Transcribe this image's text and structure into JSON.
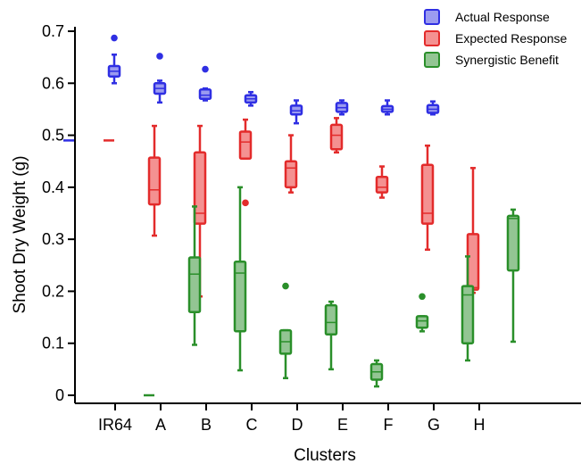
{
  "chart_data": {
    "type": "box",
    "title": "",
    "xlabel": "Clusters",
    "ylabel": "Shoot Dry Weight (g)",
    "ylim": [
      0,
      0.7
    ],
    "yticks": [
      "0",
      "0.1",
      "0.2",
      "0.3",
      "0.4",
      "0.5",
      "0.6",
      "0.7"
    ],
    "categories": [
      "IR64",
      "A",
      "B",
      "C",
      "D",
      "E",
      "F",
      "G",
      "H"
    ],
    "grid": false,
    "legend_position": "top-right",
    "series": [
      {
        "name": "Actual Response",
        "color": "#2f2fe3",
        "fill": "#9b9bf0",
        "boxes": [
          {
            "category": "IR64",
            "single_value": 0.49
          },
          {
            "category": "A",
            "whislo": 0.6,
            "q1": 0.613,
            "med": 0.623,
            "q3": 0.633,
            "whishi": 0.655,
            "fliers": [
              0.687
            ]
          },
          {
            "category": "B",
            "whislo": 0.563,
            "q1": 0.58,
            "med": 0.59,
            "q3": 0.6,
            "whishi": 0.605,
            "fliers": [
              0.652
            ]
          },
          {
            "category": "C",
            "whislo": 0.567,
            "q1": 0.57,
            "med": 0.577,
            "q3": 0.588,
            "whishi": 0.59,
            "fliers": [
              0.627
            ]
          },
          {
            "category": "D",
            "whislo": 0.557,
            "q1": 0.563,
            "med": 0.57,
            "q3": 0.577,
            "whishi": 0.583,
            "fliers": []
          },
          {
            "category": "E",
            "whislo": 0.523,
            "q1": 0.54,
            "med": 0.547,
            "q3": 0.557,
            "whishi": 0.567,
            "fliers": []
          },
          {
            "category": "F",
            "whislo": 0.54,
            "q1": 0.545,
            "med": 0.553,
            "q3": 0.562,
            "whishi": 0.567,
            "fliers": []
          },
          {
            "category": "G",
            "whislo": 0.54,
            "q1": 0.545,
            "med": 0.55,
            "q3": 0.556,
            "whishi": 0.567,
            "fliers": []
          },
          {
            "category": "H",
            "whislo": 0.54,
            "q1": 0.543,
            "med": 0.55,
            "q3": 0.558,
            "whishi": 0.565,
            "fliers": []
          }
        ]
      },
      {
        "name": "Expected Response",
        "color": "#e32b2b",
        "fill": "#f49191",
        "boxes": [
          {
            "category": "IR64",
            "single_value": 0.49
          },
          {
            "category": "A",
            "whislo": 0.307,
            "q1": 0.367,
            "med": 0.395,
            "q3": 0.457,
            "whishi": 0.518,
            "fliers": []
          },
          {
            "category": "B",
            "whislo": 0.19,
            "q1": 0.33,
            "med": 0.35,
            "q3": 0.467,
            "whishi": 0.518,
            "fliers": []
          },
          {
            "category": "C",
            "whislo": 0.455,
            "q1": 0.455,
            "med": 0.487,
            "q3": 0.507,
            "whishi": 0.53,
            "fliers": [
              0.37
            ]
          },
          {
            "category": "D",
            "whislo": 0.39,
            "q1": 0.4,
            "med": 0.437,
            "q3": 0.45,
            "whishi": 0.5,
            "fliers": []
          },
          {
            "category": "E",
            "whislo": 0.467,
            "q1": 0.473,
            "med": 0.5,
            "q3": 0.52,
            "whishi": 0.533,
            "fliers": []
          },
          {
            "category": "F",
            "whislo": 0.38,
            "q1": 0.39,
            "med": 0.4,
            "q3": 0.42,
            "whishi": 0.44,
            "fliers": []
          },
          {
            "category": "G",
            "whislo": 0.28,
            "q1": 0.33,
            "med": 0.35,
            "q3": 0.443,
            "whishi": 0.48,
            "fliers": []
          },
          {
            "category": "H",
            "whislo": 0.197,
            "q1": 0.203,
            "med": 0.207,
            "q3": 0.31,
            "whishi": 0.437,
            "fliers": []
          }
        ]
      },
      {
        "name": "Synergistic Benefit",
        "color": "#2a8f2a",
        "fill": "#93c593",
        "boxes": [
          {
            "category": "IR64",
            "single_value": 0.0
          },
          {
            "category": "A",
            "whislo": 0.097,
            "q1": 0.16,
            "med": 0.233,
            "q3": 0.265,
            "whishi": 0.363,
            "fliers": []
          },
          {
            "category": "B",
            "whislo": 0.048,
            "q1": 0.123,
            "med": 0.235,
            "q3": 0.257,
            "whishi": 0.4,
            "fliers": []
          },
          {
            "category": "C",
            "whislo": 0.033,
            "q1": 0.08,
            "med": 0.103,
            "q3": 0.125,
            "whishi": 0.125,
            "fliers": [
              0.21
            ]
          },
          {
            "category": "D",
            "whislo": 0.05,
            "q1": 0.117,
            "med": 0.14,
            "q3": 0.173,
            "whishi": 0.18,
            "fliers": []
          },
          {
            "category": "E",
            "whislo": 0.017,
            "q1": 0.03,
            "med": 0.045,
            "q3": 0.06,
            "whishi": 0.067,
            "fliers": []
          },
          {
            "category": "F",
            "whislo": 0.123,
            "q1": 0.13,
            "med": 0.143,
            "q3": 0.152,
            "whishi": 0.152,
            "fliers": [
              0.19
            ]
          },
          {
            "category": "G",
            "whislo": 0.067,
            "q1": 0.1,
            "med": 0.193,
            "q3": 0.21,
            "whishi": 0.267,
            "fliers": []
          },
          {
            "category": "H",
            "whislo": 0.103,
            "q1": 0.24,
            "med": 0.34,
            "q3": 0.345,
            "whishi": 0.357,
            "fliers": []
          }
        ]
      }
    ]
  }
}
